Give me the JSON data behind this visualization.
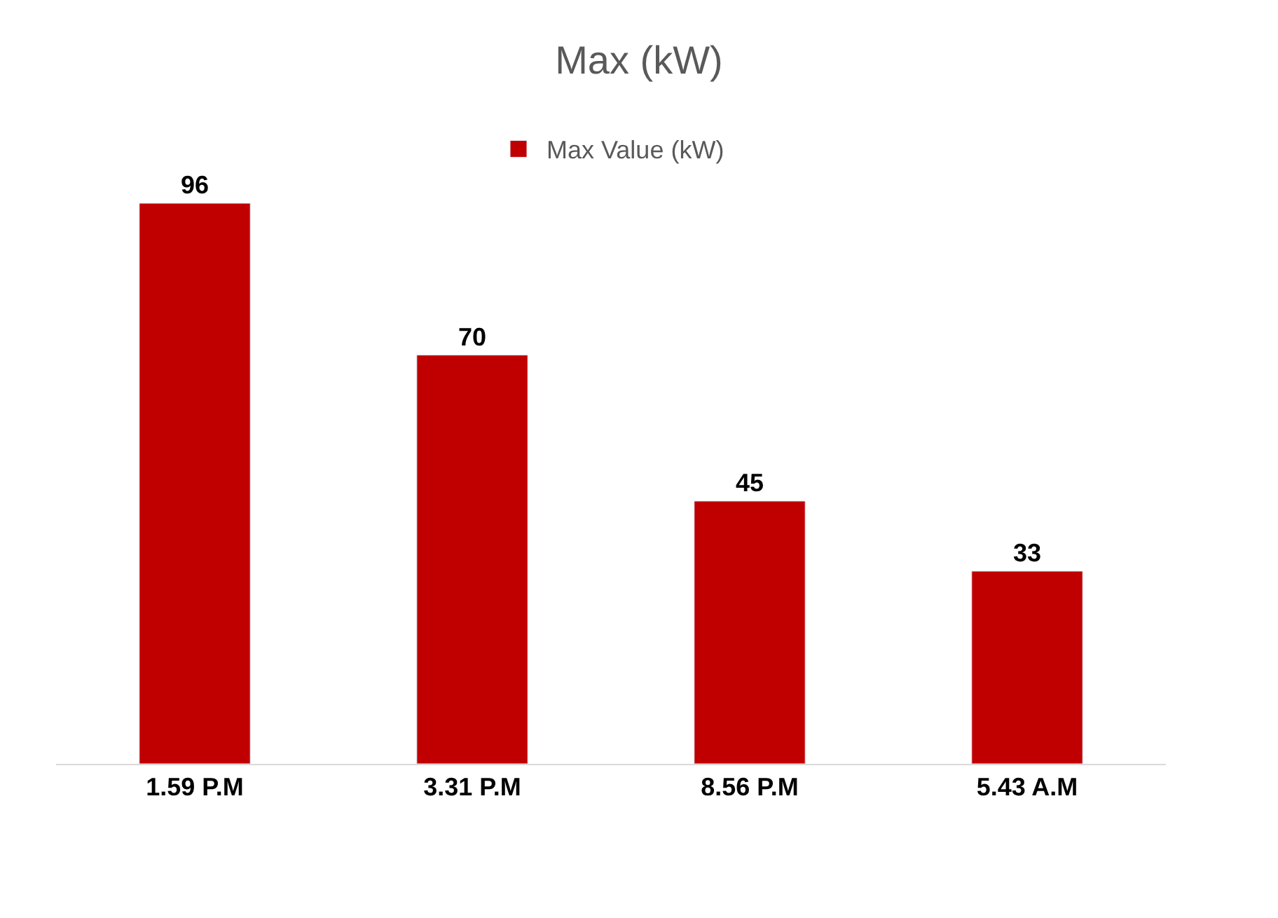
{
  "chart_data": {
    "type": "bar",
    "title": "Max (kW)",
    "categories": [
      "1.59 P.M",
      "3.31 P.M",
      "8.56 P.M",
      "5.43 A.M"
    ],
    "series": [
      {
        "name": "Max Value (kW)",
        "color": "#c00000",
        "values": [
          96,
          70,
          45,
          33
        ]
      }
    ],
    "data_labels": true,
    "legend": "top"
  }
}
